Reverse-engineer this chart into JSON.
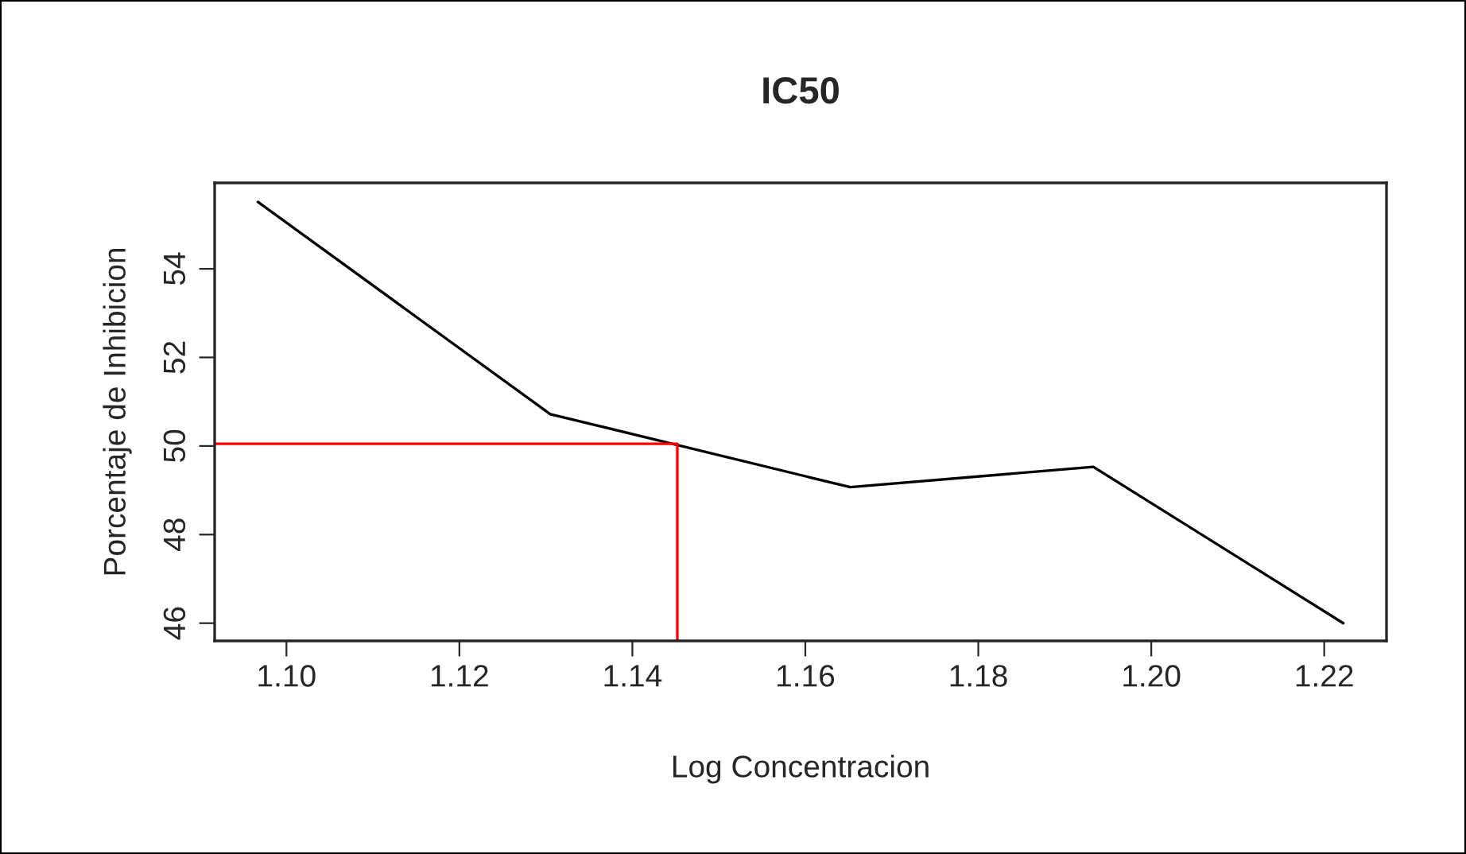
{
  "chart_data": {
    "type": "line",
    "title": "IC50",
    "xlabel": "Log Concentracion",
    "ylabel": "Porcentaje de Inhibicion",
    "series": [
      {
        "color": "#000000",
        "x": [
          1.0967,
          1.1305,
          1.1652,
          1.1933,
          1.2222
        ],
        "values": [
          55.51,
          50.72,
          49.07,
          49.53,
          46.0
        ]
      },
      {
        "color": "#ff0000",
        "x": [
          1.0917,
          1.1452,
          1.1452
        ],
        "values": [
          50.05,
          50.05,
          45.6
        ]
      }
    ],
    "xlim": [
      1.0917,
      1.2272
    ],
    "ylim": [
      45.6,
      55.94
    ],
    "xticks": [
      {
        "value": 1.1,
        "label": "1.10"
      },
      {
        "value": 1.12,
        "label": "1.12"
      },
      {
        "value": 1.14,
        "label": "1.14"
      },
      {
        "value": 1.16,
        "label": "1.16"
      },
      {
        "value": 1.18,
        "label": "1.18"
      },
      {
        "value": 1.2,
        "label": "1.20"
      },
      {
        "value": 1.22,
        "label": "1.22"
      }
    ],
    "yticks": [
      46,
      48,
      50,
      52,
      54
    ],
    "grid": false,
    "legend": false,
    "marker": "none",
    "line_style": "solid"
  }
}
